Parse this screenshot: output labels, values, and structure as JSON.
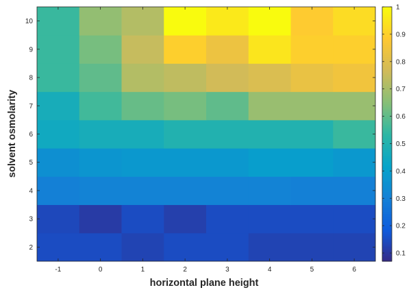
{
  "chart_data": {
    "type": "heatmap",
    "title": "",
    "xlabel": "horizontal plane height",
    "ylabel": "solvent osmolarity",
    "x": [
      -1,
      0,
      1,
      2,
      3,
      4,
      5,
      6
    ],
    "x_tick_labels": [
      "-1",
      "0",
      "1",
      "2",
      "3",
      "4",
      "5",
      "6"
    ],
    "y": [
      2,
      3,
      4,
      5,
      6,
      7,
      8,
      9,
      10
    ],
    "y_tick_labels": [
      "2",
      "3",
      "4",
      "5",
      "6",
      "7",
      "8",
      "9",
      "10"
    ],
    "values": [
      [
        0.15,
        0.15,
        0.13,
        0.15,
        0.15,
        0.13,
        0.13,
        0.13
      ],
      [
        0.14,
        0.11,
        0.15,
        0.12,
        0.15,
        0.15,
        0.15,
        0.15
      ],
      [
        0.3,
        0.31,
        0.31,
        0.31,
        0.31,
        0.31,
        0.3,
        0.3
      ],
      [
        0.35,
        0.37,
        0.38,
        0.38,
        0.38,
        0.4,
        0.4,
        0.38
      ],
      [
        0.45,
        0.47,
        0.47,
        0.5,
        0.5,
        0.5,
        0.5,
        0.55
      ],
      [
        0.47,
        0.56,
        0.61,
        0.63,
        0.6,
        0.68,
        0.68,
        0.68
      ],
      [
        0.55,
        0.6,
        0.72,
        0.74,
        0.77,
        0.79,
        0.83,
        0.85
      ],
      [
        0.55,
        0.63,
        0.75,
        0.9,
        0.84,
        0.95,
        0.9,
        0.9
      ],
      [
        0.55,
        0.67,
        0.72,
        1.0,
        0.96,
        1.0,
        0.89,
        0.93
      ]
    ],
    "color_range": [
      0.07,
      1.0
    ],
    "colorbar_ticks": [
      0.1,
      0.2,
      0.3,
      0.4,
      0.5,
      0.6,
      0.7,
      0.8,
      0.9,
      1
    ],
    "colorbar_tick_labels": [
      "0.1",
      "0.2",
      "0.3",
      "0.4",
      "0.5",
      "0.6",
      "0.7",
      "0.8",
      "0.9",
      "1"
    ],
    "colormap": "parula",
    "colormap_stops": [
      "#352A87",
      "#0F5CDD",
      "#1481D6",
      "#06A4CA",
      "#2EB7A4",
      "#87BF77",
      "#D1BB59",
      "#FEC832",
      "#F9FB0E"
    ],
    "grid": false,
    "legend": "colorbar-right"
  }
}
